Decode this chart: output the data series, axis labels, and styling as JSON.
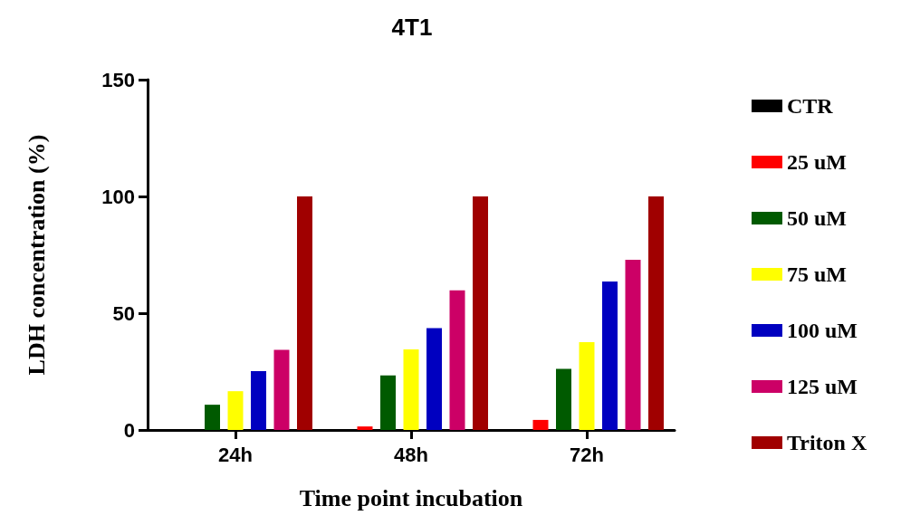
{
  "chart_data": {
    "type": "bar",
    "title": "4T1",
    "xlabel": "Time point incubation",
    "ylabel": "LDH concentration (%)",
    "categories": [
      "24h",
      "48h",
      "72h"
    ],
    "series": [
      {
        "name": "CTR",
        "color": "#000000",
        "values": [
          0,
          0,
          0
        ]
      },
      {
        "name": "25 uM",
        "color": "#ff0000",
        "values": [
          0,
          1.5,
          4.3
        ]
      },
      {
        "name": "50 uM",
        "color": "#005a00",
        "values": [
          10.8,
          23.4,
          26.2
        ]
      },
      {
        "name": "75 uM",
        "color": "#ffff00",
        "values": [
          16.6,
          34.5,
          37.6
        ]
      },
      {
        "name": "100 uM",
        "color": "#0000c0",
        "values": [
          25.2,
          43.6,
          63.6
        ]
      },
      {
        "name": "125 uM",
        "color": "#cc0066",
        "values": [
          34.3,
          59.8,
          72.9
        ]
      },
      {
        "name": "Triton X",
        "color": "#a00000",
        "values": [
          100,
          100,
          100
        ]
      }
    ],
    "ylim": [
      0,
      150
    ],
    "yticks": [
      0,
      50,
      100,
      150
    ],
    "grid": false,
    "legend": "right"
  }
}
